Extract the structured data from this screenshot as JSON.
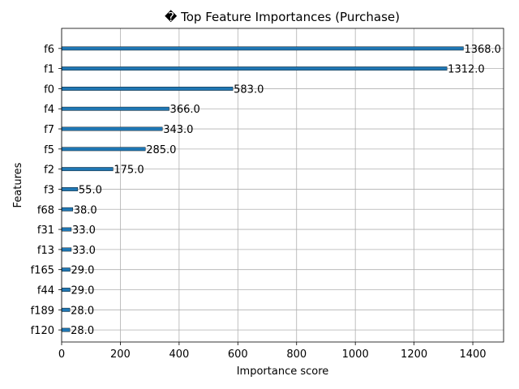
{
  "chart_data": {
    "type": "bar",
    "orientation": "horizontal",
    "title": "� Top Feature Importances (Purchase)",
    "xlabel": "Importance score",
    "ylabel": "Features",
    "categories": [
      "f6",
      "f1",
      "f0",
      "f4",
      "f7",
      "f5",
      "f2",
      "f3",
      "f68",
      "f31",
      "f13",
      "f165",
      "f44",
      "f189",
      "f120"
    ],
    "values": [
      1368.0,
      1312.0,
      583.0,
      366.0,
      343.0,
      285.0,
      175.0,
      55.0,
      38.0,
      33.0,
      33.0,
      29.0,
      29.0,
      28.0,
      28.0
    ],
    "value_labels": [
      "1368.0",
      "1312.0",
      "583.0",
      "366.0",
      "343.0",
      "285.0",
      "175.0",
      "55.0",
      "38.0",
      "33.0",
      "33.0",
      "29.0",
      "29.0",
      "28.0",
      "28.0"
    ],
    "xlim": [
      0,
      1504.8
    ],
    "xticks": [
      0,
      200,
      400,
      600,
      800,
      1000,
      1200,
      1400
    ],
    "grid": true,
    "bar_color": "#1f77b4"
  }
}
